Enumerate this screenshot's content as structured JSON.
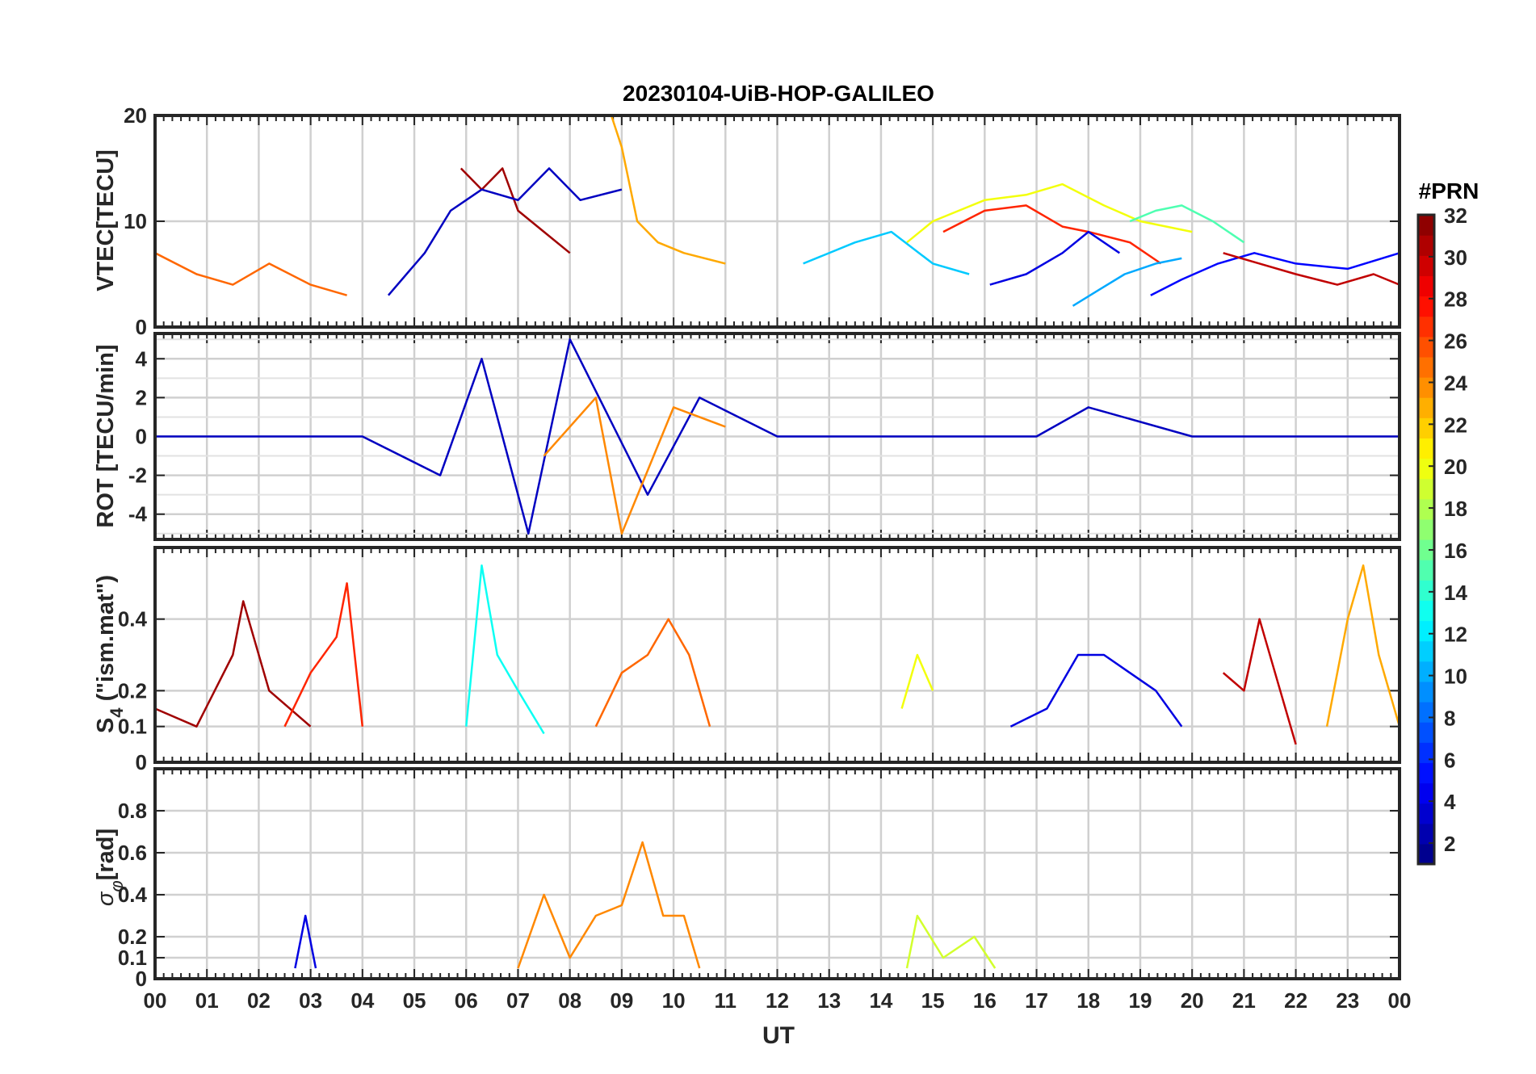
{
  "chart_data": {
    "type": "line",
    "title": "20230104-UiB-HOP-GALILEO",
    "xlabel": "UT",
    "xlim": [
      0,
      24
    ],
    "x_tick_labels": [
      "00",
      "01",
      "02",
      "03",
      "04",
      "05",
      "06",
      "07",
      "08",
      "09",
      "10",
      "11",
      "12",
      "13",
      "14",
      "15",
      "16",
      "17",
      "18",
      "19",
      "20",
      "21",
      "22",
      "23",
      "00"
    ],
    "grid": true,
    "colorbar": {
      "title": "#PRN",
      "range": [
        1,
        32
      ],
      "tick_labels": [
        "2",
        "4",
        "6",
        "8",
        "10",
        "12",
        "14",
        "16",
        "18",
        "20",
        "22",
        "24",
        "26",
        "28",
        "30",
        "32"
      ],
      "colormap": "jet",
      "placement": "right"
    },
    "panels": [
      {
        "id": "vtec",
        "ylabel": "VTEC[TECU]",
        "ylim": [
          0,
          20
        ],
        "y_ticks": [
          0,
          10,
          20
        ],
        "y_tick_labels": [
          "0",
          "10",
          "20"
        ],
        "series": [
          {
            "prn": 25,
            "x": [
              0.0,
              0.8,
              1.5,
              2.2,
              3.0,
              3.7
            ],
            "y": [
              7.0,
              5.0,
              4.0,
              6.0,
              4.0,
              3.0
            ]
          },
          {
            "prn": 31,
            "x": [
              5.9,
              6.3,
              6.7,
              7.0,
              7.5,
              8.0
            ],
            "y": [
              15.0,
              13.0,
              15.0,
              11.0,
              9.0,
              7.0
            ]
          },
          {
            "prn": 3,
            "x": [
              4.5,
              5.2,
              5.7,
              6.3,
              7.0,
              7.6,
              8.2,
              9.0
            ],
            "y": [
              3.0,
              7.0,
              11.0,
              13.0,
              12.0,
              15.0,
              12.0,
              13.0
            ]
          },
          {
            "prn": 23,
            "x": [
              8.8,
              9.0,
              9.3,
              9.7,
              10.2,
              11.0
            ],
            "y": [
              20.0,
              17.0,
              10.0,
              8.0,
              7.0,
              6.0
            ]
          },
          {
            "prn": 20,
            "x": [
              14.5,
              15.0,
              16.0,
              16.8,
              17.5,
              18.3,
              19.0,
              20.0
            ],
            "y": [
              8.0,
              10.0,
              12.0,
              12.5,
              13.5,
              11.5,
              10.0,
              9.0
            ]
          },
          {
            "prn": 27,
            "x": [
              15.2,
              16.0,
              16.8,
              17.5,
              18.0,
              18.8,
              19.4
            ],
            "y": [
              9.0,
              11.0,
              11.5,
              9.5,
              9.0,
              8.0,
              6.0
            ]
          },
          {
            "prn": 4,
            "x": [
              16.1,
              16.8,
              17.5,
              18.0,
              18.6
            ],
            "y": [
              4.0,
              5.0,
              7.0,
              9.0,
              7.0
            ]
          },
          {
            "prn": 10,
            "x": [
              17.7,
              18.2,
              18.7,
              19.3,
              19.8
            ],
            "y": [
              2.0,
              3.5,
              5.0,
              6.0,
              6.5
            ]
          },
          {
            "prn": 15,
            "x": [
              18.8,
              19.3,
              19.8,
              20.4,
              21.0
            ],
            "y": [
              10.0,
              11.0,
              11.5,
              10.0,
              8.0
            ]
          },
          {
            "prn": 5,
            "x": [
              19.2,
              19.8,
              20.5,
              21.2,
              22.0,
              23.0,
              24.0
            ],
            "y": [
              3.0,
              4.5,
              6.0,
              7.0,
              6.0,
              5.5,
              7.0
            ]
          },
          {
            "prn": 30,
            "x": [
              20.6,
              21.3,
              22.0,
              22.8,
              23.5,
              24.0
            ],
            "y": [
              7.0,
              6.0,
              5.0,
              4.0,
              5.0,
              4.0
            ]
          },
          {
            "prn": 11,
            "x": [
              12.5,
              13.5,
              14.2,
              15.0,
              15.7
            ],
            "y": [
              6.0,
              8.0,
              9.0,
              6.0,
              5.0
            ]
          }
        ]
      },
      {
        "id": "rot",
        "ylabel": "ROT [TECU/min]",
        "ylim": [
          -5.3,
          5.3
        ],
        "y_ticks": [
          -4,
          -2,
          0,
          2,
          4
        ],
        "y_tick_labels": [
          "-4",
          "-2",
          "0",
          "2",
          "4"
        ],
        "series": [
          {
            "prn": 3,
            "x": [
              0.0,
              4.0,
              5.5,
              6.3,
              7.2,
              8.0,
              9.5,
              10.5,
              12.0,
              14.0,
              17.0,
              18.0,
              20.0,
              24.0
            ],
            "y": [
              0.0,
              0.0,
              -2.0,
              4.0,
              -5.0,
              5.0,
              -3.0,
              2.0,
              0.0,
              0.0,
              0.0,
              1.5,
              0.0,
              0.0
            ]
          },
          {
            "prn": 24,
            "x": [
              7.5,
              8.5,
              9.0,
              10.0,
              11.0
            ],
            "y": [
              -1.0,
              2.0,
              -5.0,
              1.5,
              0.5
            ]
          }
        ]
      },
      {
        "id": "s4",
        "ylabel": "S4 (\"ism.mat\")",
        "ylabel_main": "S",
        "ylabel_sub": "4",
        "ylabel_rest": " (\"ism.mat\")",
        "ylim": [
          0,
          0.6
        ],
        "y_ticks": [
          0,
          0.1,
          0.2,
          0.4
        ],
        "y_tick_labels": [
          "0",
          "0.1",
          "0.2",
          "0.4"
        ],
        "series": [
          {
            "prn": 31,
            "x": [
              0.0,
              0.8,
              1.5,
              1.7,
              2.2,
              3.0
            ],
            "y": [
              0.15,
              0.1,
              0.3,
              0.45,
              0.2,
              0.1
            ]
          },
          {
            "prn": 27,
            "x": [
              2.5,
              3.0,
              3.5,
              3.7,
              4.0
            ],
            "y": [
              0.1,
              0.25,
              0.35,
              0.5,
              0.1
            ]
          },
          {
            "prn": 13,
            "x": [
              6.0,
              6.3,
              6.6,
              7.0,
              7.5
            ],
            "y": [
              0.1,
              0.55,
              0.3,
              0.2,
              0.08
            ]
          },
          {
            "prn": 25,
            "x": [
              8.5,
              9.0,
              9.5,
              9.9,
              10.3,
              10.7
            ],
            "y": [
              0.1,
              0.25,
              0.3,
              0.4,
              0.3,
              0.1
            ]
          },
          {
            "prn": 4,
            "x": [
              16.5,
              17.2,
              17.8,
              18.3,
              18.8,
              19.3,
              19.8
            ],
            "y": [
              0.1,
              0.15,
              0.3,
              0.3,
              0.25,
              0.2,
              0.1
            ]
          },
          {
            "prn": 20,
            "x": [
              14.4,
              14.7,
              15.0
            ],
            "y": [
              0.15,
              0.3,
              0.2
            ]
          },
          {
            "prn": 30,
            "x": [
              20.6,
              21.0,
              21.3,
              21.7,
              22.0
            ],
            "y": [
              0.25,
              0.2,
              0.4,
              0.2,
              0.05
            ]
          },
          {
            "prn": 23,
            "x": [
              22.6,
              23.0,
              23.3,
              23.6,
              24.0
            ],
            "y": [
              0.1,
              0.4,
              0.55,
              0.3,
              0.1
            ]
          }
        ]
      },
      {
        "id": "sigma_phi",
        "ylabel": "σφ[rad]",
        "ylabel_main": "σ",
        "ylabel_sub": "φ",
        "ylabel_rest": "[rad]",
        "ylim": [
          0,
          1.0
        ],
        "y_ticks": [
          0,
          0.1,
          0.2,
          0.4,
          0.6,
          0.8
        ],
        "y_tick_labels": [
          "0",
          "0.1",
          "0.2",
          "0.4",
          "0.6",
          "0.8"
        ],
        "series": [
          {
            "prn": 24,
            "x": [
              7.0,
              7.5,
              8.0,
              8.5,
              9.0,
              9.4,
              9.8,
              10.2,
              10.5
            ],
            "y": [
              0.05,
              0.4,
              0.1,
              0.3,
              0.35,
              0.65,
              0.3,
              0.3,
              0.05
            ]
          },
          {
            "prn": 4,
            "x": [
              2.7,
              2.9,
              3.1
            ],
            "y": [
              0.05,
              0.3,
              0.05
            ]
          },
          {
            "prn": 19,
            "x": [
              14.5,
              14.7,
              15.2,
              15.8,
              16.2
            ],
            "y": [
              0.05,
              0.3,
              0.1,
              0.2,
              0.05
            ]
          }
        ]
      }
    ]
  }
}
